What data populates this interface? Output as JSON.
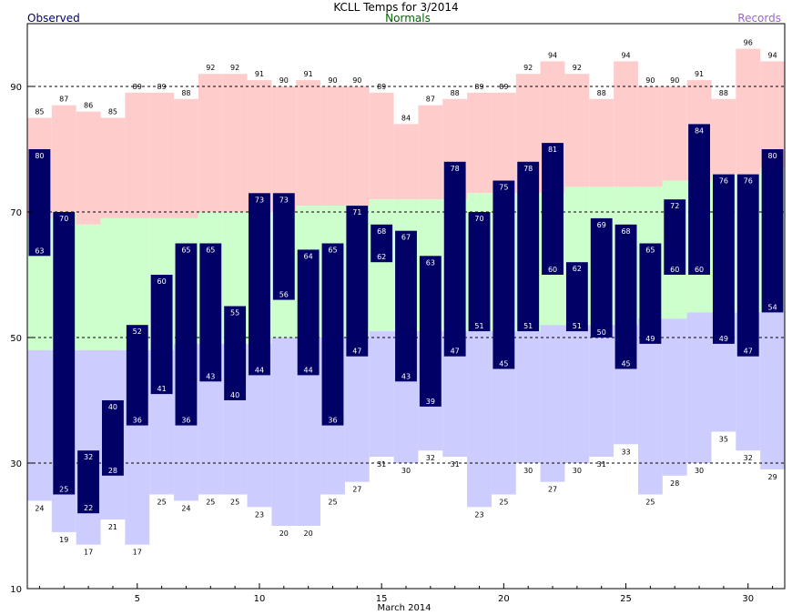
{
  "title": "KCLL Temps for 3/2014",
  "legend": {
    "observed": "Observed",
    "normals": "Normals",
    "records": "Records"
  },
  "colors": {
    "observed": "#000066",
    "normals": "#006600",
    "records": "#9966cc",
    "record_high_fill": "#ffcccc",
    "normal_fill": "#ccffcc",
    "record_low_fill": "#ccccff"
  },
  "chart_data": {
    "type": "bar",
    "xlabel": "March 2014",
    "ylabel": "",
    "x_ticks": [
      5,
      10,
      15,
      20,
      25,
      30
    ],
    "y_ticks": [
      10,
      30,
      50,
      70,
      90
    ],
    "xlim": [
      0.5,
      31.5
    ],
    "ylim": [
      10,
      100
    ],
    "gridlines_y": [
      30,
      50,
      70,
      90
    ],
    "days": [
      1,
      2,
      3,
      4,
      5,
      6,
      7,
      8,
      9,
      10,
      11,
      12,
      13,
      14,
      15,
      16,
      17,
      18,
      19,
      20,
      21,
      22,
      23,
      24,
      25,
      26,
      27,
      28,
      29,
      30,
      31
    ],
    "series": [
      {
        "name": "Records",
        "key": "record_high",
        "values": [
          85,
          87,
          86,
          85,
          89,
          89,
          88,
          92,
          92,
          91,
          90,
          91,
          90,
          90,
          89,
          84,
          87,
          88,
          89,
          89,
          92,
          94,
          92,
          88,
          94,
          90,
          90,
          91,
          88,
          96,
          94
        ]
      },
      {
        "name": "Normals",
        "key": "normal_high",
        "values": [
          69,
          70,
          68,
          69,
          69,
          69,
          69,
          70,
          70,
          70,
          70,
          71,
          71,
          71,
          72,
          72,
          72,
          72,
          73,
          73,
          73,
          73,
          74,
          74,
          74,
          74,
          75,
          75,
          76,
          76,
          77
        ]
      },
      {
        "name": "Normals",
        "key": "normal_low",
        "values": [
          48,
          48,
          48,
          48,
          48,
          48,
          49,
          49,
          49,
          49,
          50,
          50,
          50,
          50,
          51,
          51,
          51,
          51,
          51,
          51,
          51,
          52,
          52,
          52,
          52,
          53,
          53,
          54,
          54,
          54,
          54
        ]
      },
      {
        "name": "Records",
        "key": "record_low",
        "values": [
          24,
          19,
          17,
          21,
          17,
          25,
          24,
          25,
          25,
          23,
          20,
          20,
          25,
          27,
          31,
          30,
          32,
          31,
          23,
          25,
          30,
          27,
          30,
          31,
          33,
          25,
          28,
          30,
          35,
          32,
          29
        ]
      },
      {
        "name": "Observed",
        "key": "observed_high",
        "values": [
          80,
          70,
          32,
          40,
          52,
          60,
          65,
          65,
          55,
          73,
          73,
          64,
          65,
          71,
          68,
          67,
          63,
          78,
          70,
          75,
          78,
          81,
          62,
          69,
          68,
          65,
          72,
          84,
          76,
          76,
          80
        ]
      },
      {
        "name": "Observed",
        "key": "observed_low",
        "values": [
          63,
          25,
          22,
          28,
          36,
          41,
          36,
          43,
          40,
          44,
          56,
          44,
          36,
          47,
          62,
          43,
          39,
          47,
          51,
          45,
          51,
          60,
          51,
          50,
          45,
          49,
          60,
          60,
          49,
          47,
          54
        ]
      }
    ]
  }
}
